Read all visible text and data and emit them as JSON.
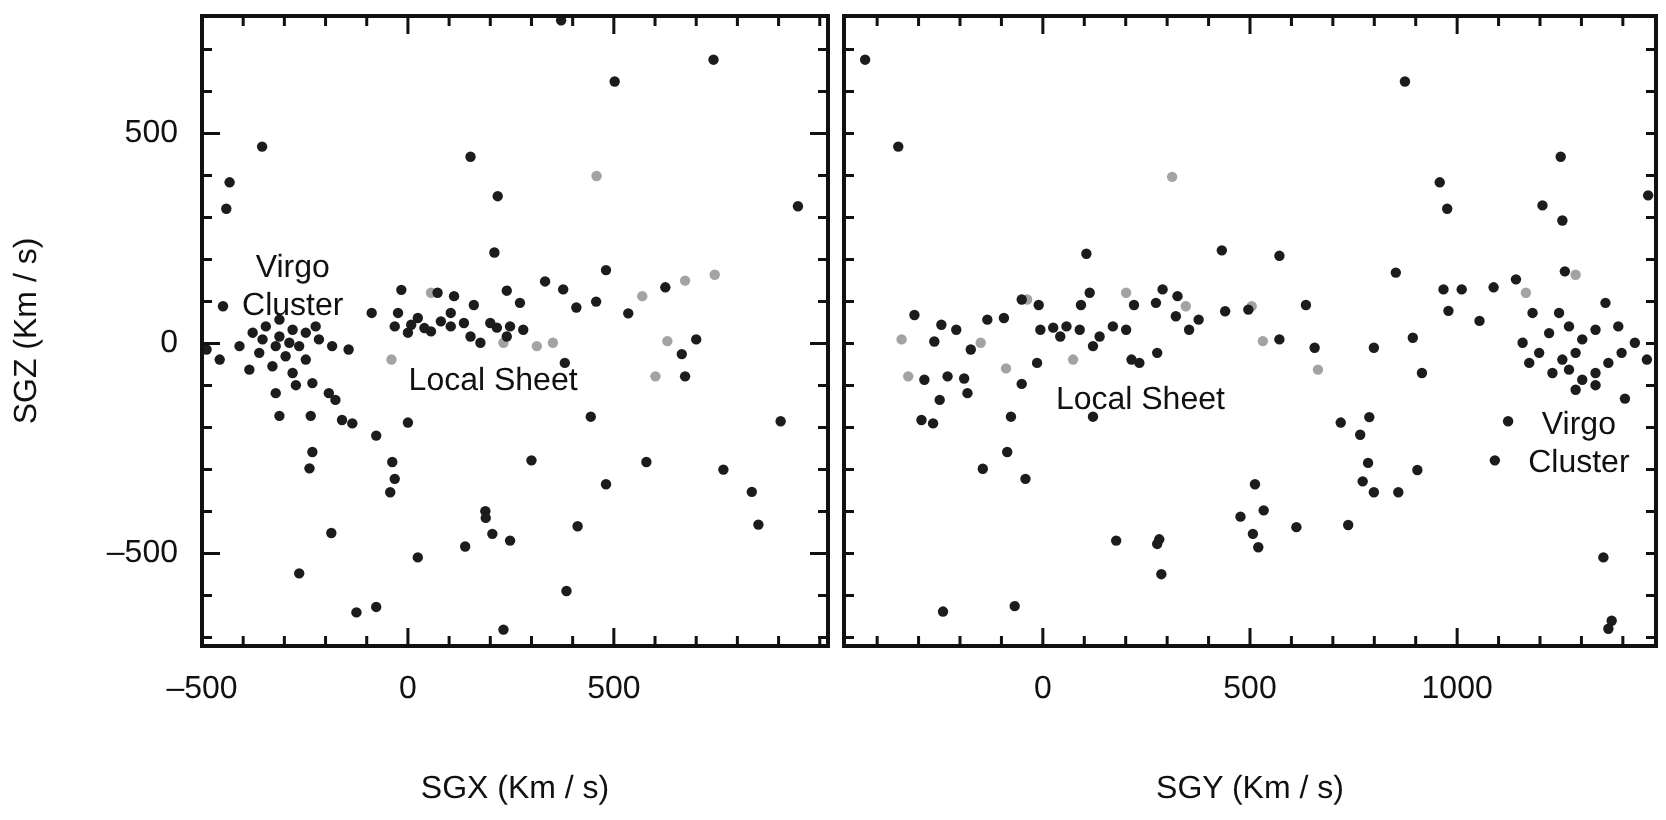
{
  "chart_data": [
    {
      "type": "scatter",
      "xlabel": "SGX (Km / s)",
      "ylabel": "SGZ (Km / s)",
      "marker": "circle",
      "legend": false,
      "grid": false,
      "xlim": [
        -500,
        1020
      ],
      "ylim": [
        -720,
        780
      ],
      "xticks": [
        {
          "value": -500,
          "label": "–500"
        },
        {
          "value": -400,
          "label": null
        },
        {
          "value": -300,
          "label": null
        },
        {
          "value": -200,
          "label": null
        },
        {
          "value": -100,
          "label": null
        },
        0,
        {
          "value": 100,
          "label": null
        },
        {
          "value": 200,
          "label": null
        },
        {
          "value": 300,
          "label": null
        },
        {
          "value": 400,
          "label": null
        },
        500,
        {
          "value": 600,
          "label": null
        },
        {
          "value": 700,
          "label": null
        },
        {
          "value": 800,
          "label": null
        },
        {
          "value": 900,
          "label": null
        },
        {
          "value": 1000,
          "label": null
        }
      ],
      "yticks": [
        {
          "value": -700,
          "label": null
        },
        {
          "value": -600,
          "label": null
        },
        {
          "value": -500,
          "label": "–500"
        },
        {
          "value": -400,
          "label": null
        },
        {
          "value": -300,
          "label": null
        },
        {
          "value": -200,
          "label": null
        },
        {
          "value": -100,
          "label": null
        },
        0,
        {
          "value": 100,
          "label": null
        },
        {
          "value": 200,
          "label": null
        },
        {
          "value": 300,
          "label": null
        },
        {
          "value": 400,
          "label": null
        },
        500,
        {
          "value": 600,
          "label": null
        },
        {
          "value": 700,
          "label": null
        }
      ],
      "annotations": [
        "Virgo\nCluster",
        "Local Sheet"
      ],
      "series": [
        {
          "color": "#1c1c1c",
          "x": [
            742,
            502,
            -354,
            152,
            -433,
            -441,
            218,
            947,
            210,
            481,
            625,
            333,
            377,
            409,
            457,
            535,
            700,
            665,
            673,
            381,
            444,
            905,
            0,
            -77,
            -135,
            -160,
            -236,
            -312,
            -232,
            -239,
            -38,
            -32,
            -43,
            300,
            579,
            481,
            766,
            835,
            851,
            188,
            189,
            205,
            248,
            139,
            24,
            -186,
            412,
            -264,
            385,
            -77,
            -125,
            232,
            372,
            -16,
            72,
            112,
            160,
            240,
            272,
            -24,
            8,
            40,
            80,
            104,
            136,
            200,
            216,
            248,
            280,
            0,
            56,
            152,
            240,
            176,
            104,
            24,
            -32,
            -489,
            -457,
            -409,
            -377,
            -345,
            -312,
            -280,
            -248,
            -216,
            -184,
            -144,
            -361,
            -321,
            -297,
            -264,
            -329,
            -280,
            -232,
            -192,
            -176,
            -248,
            -385,
            -321,
            -272,
            -312,
            -288,
            -353,
            -224,
            -449,
            -88
          ],
          "values": [
            676,
            624,
            469,
            445,
            384,
            321,
            351,
            327,
            217,
            175,
            134,
            148,
            129,
            86,
            100,
            72,
            10,
            -25,
            -78,
            -46,
            -174,
            -185,
            -188,
            -219,
            -190,
            -182,
            -172,
            -172,
            -258,
            -297,
            -282,
            -322,
            -354,
            -278,
            -282,
            -335,
            -300,
            -353,
            -431,
            -399,
            -415,
            -453,
            -469,
            -483,
            -509,
            -451,
            -435,
            -547,
            -589,
            -627,
            -640,
            -681,
            770,
            128,
            121,
            113,
            92,
            126,
            97,
            73,
            45,
            37,
            53,
            41,
            49,
            49,
            38,
            41,
            33,
            26,
            29,
            17,
            17,
            2,
            73,
            61,
            41,
            -14,
            -38,
            -6,
            26,
            41,
            57,
            33,
            26,
            10,
            -6,
            -14,
            -22,
            -6,
            -30,
            -6,
            -54,
            -70,
            -94,
            -118,
            -134,
            -38,
            -62,
            -118,
            -99,
            17,
            2,
            10,
            41,
            89,
            73
          ]
        },
        {
          "color": "#a3a3a3",
          "x": [
            458,
            56,
            313,
            601,
            673,
            569,
            745,
            232,
            -40,
            630,
            352
          ],
          "values": [
            399,
            121,
            -6,
            -78,
            150,
            113,
            164,
            2,
            -38,
            6,
            2
          ]
        }
      ]
    },
    {
      "type": "scatter",
      "xlabel": "SGY (Km / s)",
      "marker": "circle",
      "legend": false,
      "grid": false,
      "tick_labels": "x",
      "xlim": [
        -480,
        1480
      ],
      "ylim": [
        -720,
        780
      ],
      "xticks": [
        {
          "value": -400,
          "label": null
        },
        {
          "value": -300,
          "label": null
        },
        {
          "value": -200,
          "label": null
        },
        {
          "value": -100,
          "label": null
        },
        0,
        {
          "value": 100,
          "label": null
        },
        {
          "value": 200,
          "label": null
        },
        {
          "value": 300,
          "label": null
        },
        {
          "value": 400,
          "label": null
        },
        500,
        {
          "value": 600,
          "label": null
        },
        {
          "value": 700,
          "label": null
        },
        {
          "value": 800,
          "label": null
        },
        {
          "value": 900,
          "label": null
        },
        1000,
        {
          "value": 1100,
          "label": null
        },
        {
          "value": 1200,
          "label": null
        },
        {
          "value": 1300,
          "label": null
        },
        {
          "value": 1400,
          "label": null
        }
      ],
      "yticks": [
        {
          "value": -700,
          "label": null
        },
        {
          "value": -600,
          "label": null
        },
        {
          "value": -500,
          "label": null
        },
        {
          "value": -400,
          "label": null
        },
        {
          "value": -300,
          "label": null
        },
        {
          "value": -200,
          "label": null
        },
        {
          "value": -100,
          "label": null
        },
        {
          "value": 0,
          "label": null
        },
        {
          "value": 100,
          "label": null
        },
        {
          "value": 200,
          "label": null
        },
        {
          "value": 300,
          "label": null
        },
        {
          "value": 400,
          "label": null
        },
        {
          "value": 500,
          "label": null
        },
        {
          "value": 600,
          "label": null
        },
        {
          "value": 700,
          "label": null
        }
      ],
      "annotations": [
        "Local Sheet",
        "Virgo\nCluster"
      ],
      "series": [
        {
          "color": "#1c1c1c",
          "x": [
            -429,
            -349,
            874,
            1250,
            976,
            1206,
            1254,
            1461,
            105,
            432,
            571,
            1260,
            967,
            1011,
            1088,
            979,
            635,
            440,
            496,
            571,
            656,
            799,
            893,
            915,
            719,
            788,
            766,
            785,
            772,
            799,
            858,
            904,
            737,
            612,
            512,
            533,
            477,
            507,
            520,
            177,
            281,
            276,
            286,
            -241,
            -68,
            -145,
            -86,
            -42,
            -77,
            -293,
            -265,
            -249,
            -182,
            -286,
            -230,
            -190,
            -310,
            -262,
            -245,
            -209,
            -174,
            -134,
            -94,
            -51,
            -10,
            -51,
            -14,
            -6,
            25,
            113,
            92,
            89,
            137,
            121,
            121,
            201,
            220,
            214,
            233,
            276,
            273,
            289,
            325,
            321,
            376,
            353,
            169,
            42,
            57,
            1158,
            1174,
            1198,
            1222,
            1246,
            1270,
            1302,
            1334,
            1358,
            1389,
            1429,
            1458,
            1397,
            1365,
            1334,
            1302,
            1334,
            1270,
            1230,
            1254,
            1286,
            1405,
            1286,
            1182,
            1142,
            1123,
            1091,
            1353,
            1373,
            1365,
            958,
            852,
            1054
          ],
          "values": [
            676,
            469,
            624,
            445,
            321,
            329,
            293,
            353,
            214,
            222,
            209,
            172,
            129,
            129,
            134,
            78,
            92,
            77,
            81,
            10,
            -10,
            -10,
            14,
            -70,
            -188,
            -175,
            -217,
            -284,
            -328,
            -354,
            -354,
            -301,
            -432,
            -437,
            -335,
            -397,
            -412,
            -453,
            -485,
            -469,
            -466,
            -477,
            -549,
            -638,
            -625,
            -298,
            -258,
            -322,
            -174,
            -182,
            -190,
            -134,
            -118,
            -86,
            -78,
            -83,
            68,
            5,
            45,
            33,
            -14,
            57,
            61,
            105,
            92,
            -96,
            -46,
            33,
            38,
            121,
            92,
            33,
            17,
            -6,
            -174,
            33,
            92,
            -38,
            -46,
            -22,
            97,
            129,
            113,
            65,
            57,
            33,
            41,
            17,
            41,
            2,
            -46,
            -22,
            25,
            73,
            41,
            10,
            33,
            97,
            41,
            2,
            -38,
            -22,
            -46,
            -70,
            -86,
            -99,
            -62,
            -70,
            -38,
            -22,
            -131,
            -110,
            73,
            153,
            -185,
            -278,
            -509,
            -660,
            -679,
            384,
            169,
            54
          ]
        },
        {
          "color": "#a3a3a3",
          "x": [
            312,
            -38,
            201,
            345,
            73,
            -89,
            -150,
            664,
            531,
            1286,
            1166,
            -341,
            -325,
            504
          ],
          "values": [
            397,
            105,
            121,
            89,
            -38,
            -59,
            2,
            -62,
            6,
            164,
            121,
            10,
            -78,
            89
          ]
        }
      ]
    }
  ]
}
